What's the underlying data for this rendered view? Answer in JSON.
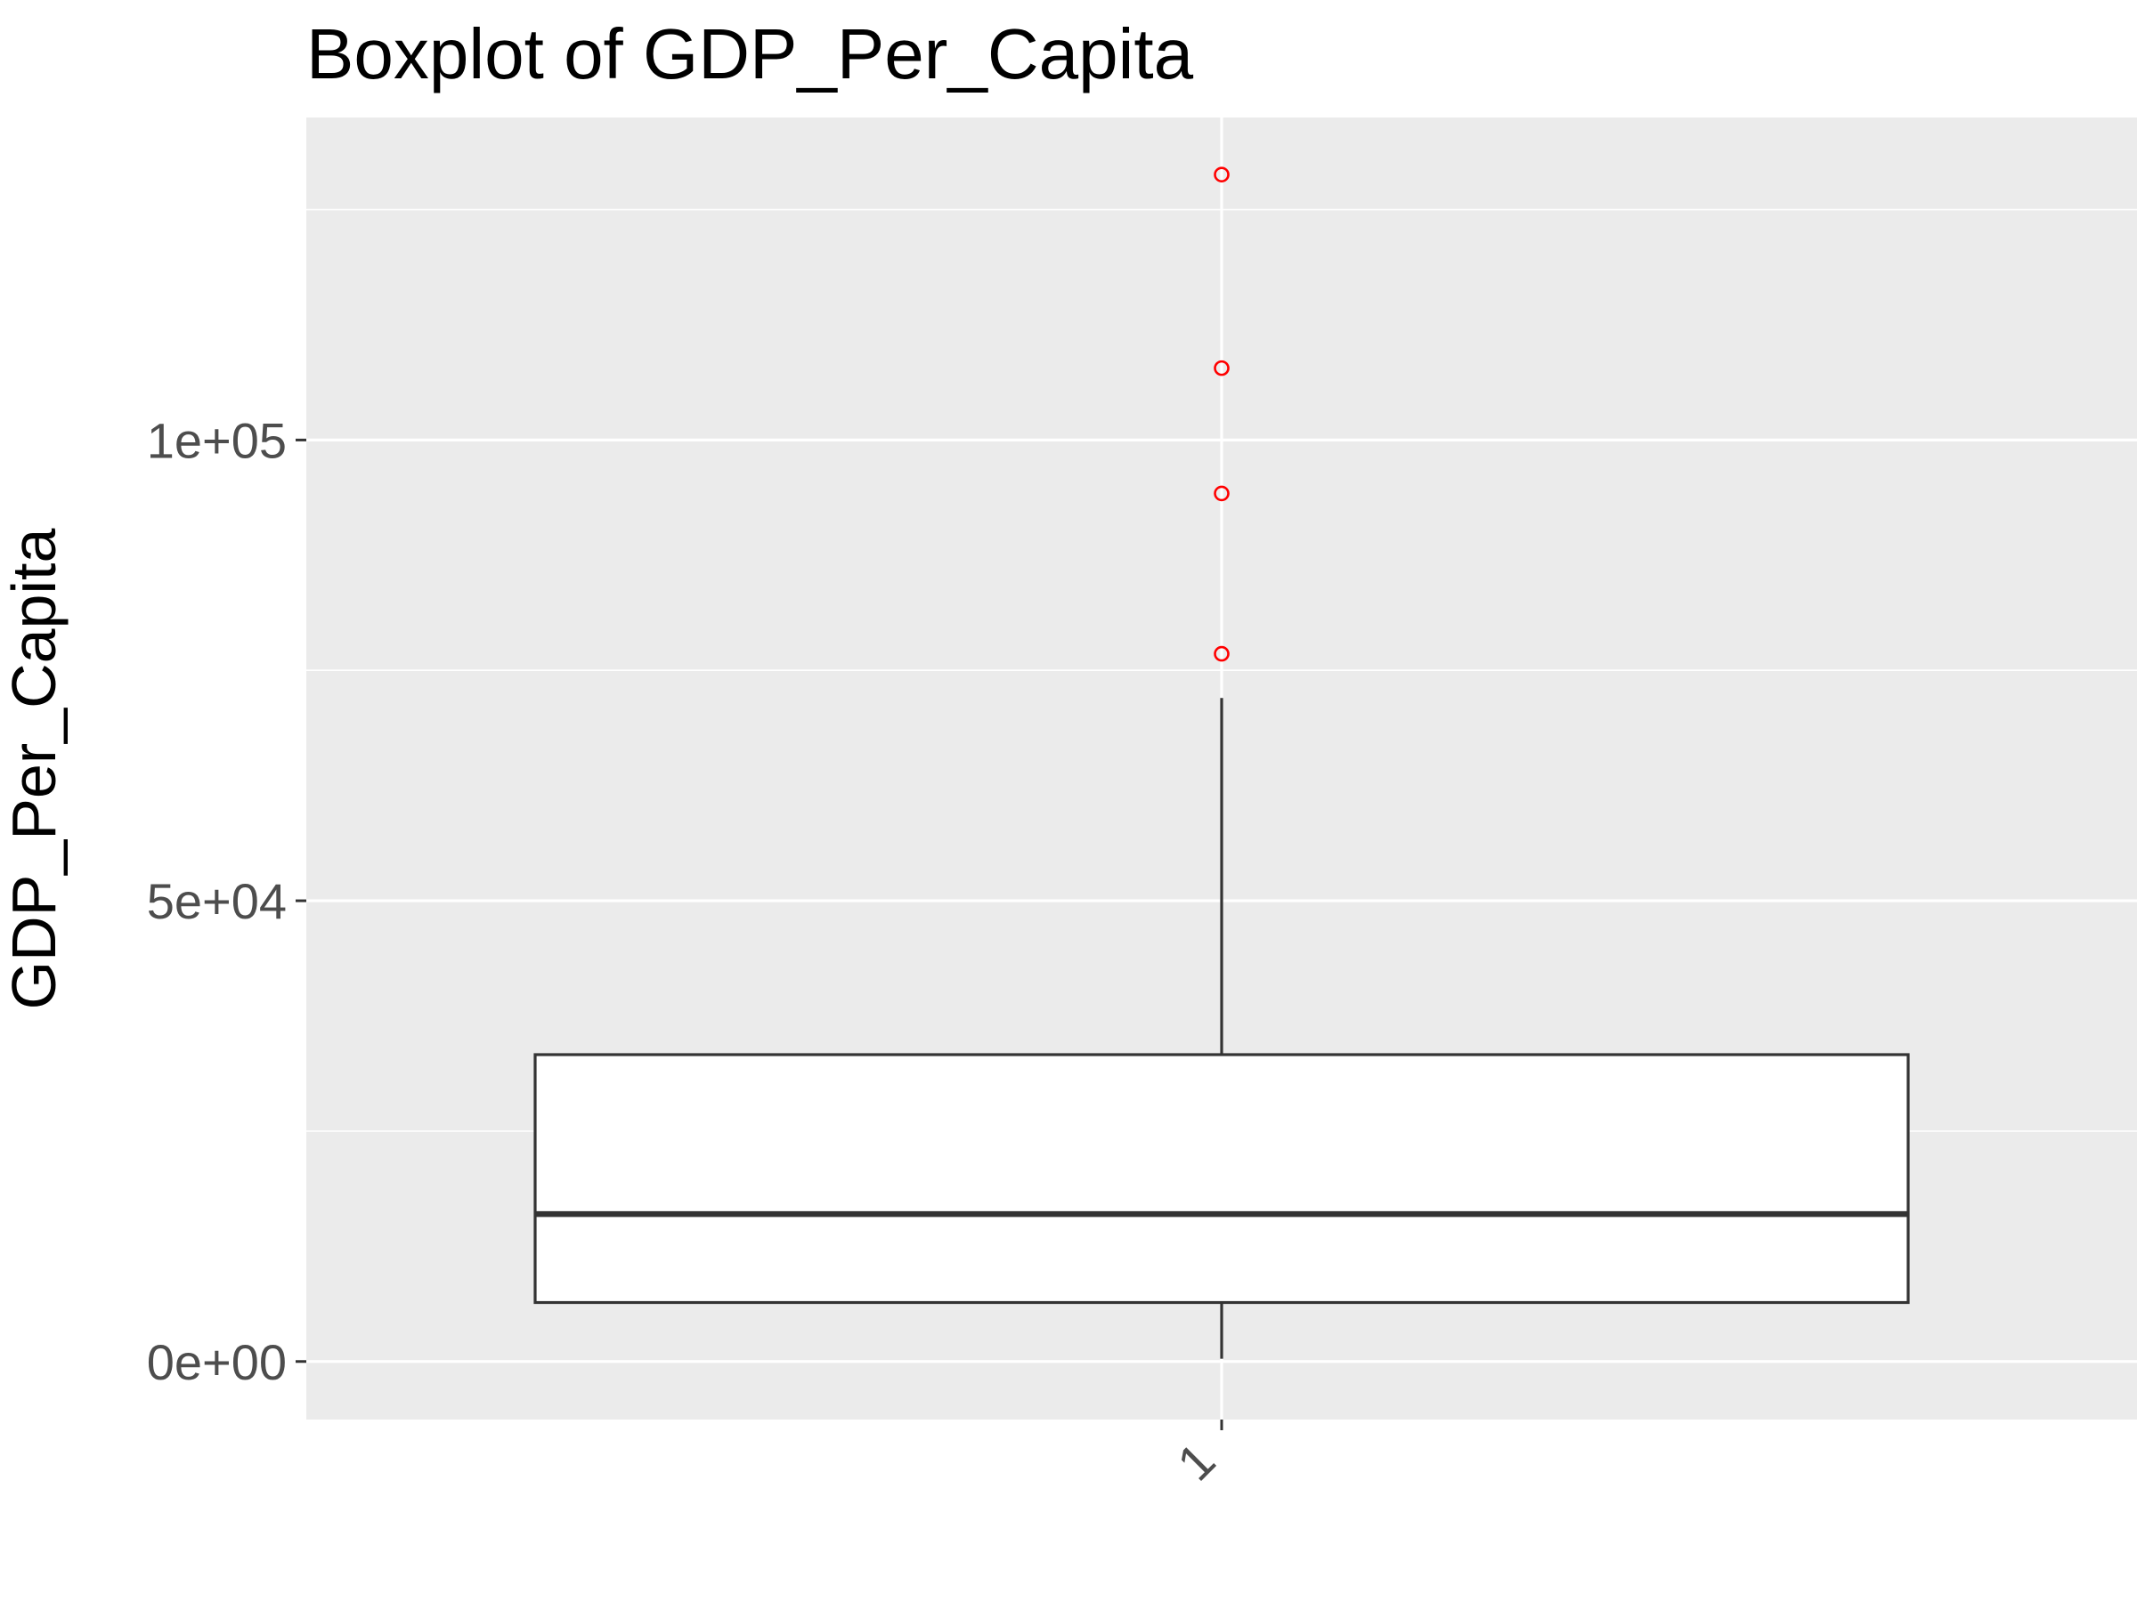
{
  "chart_data": {
    "type": "boxplot",
    "title": "Boxplot of GDP_Per_Capita",
    "xlabel": "",
    "ylabel": "GDP_Per_Capita",
    "categories": [
      "1"
    ],
    "yticks": [
      {
        "value": 0,
        "label": "0e+00"
      },
      {
        "value": 50000,
        "label": "5e+04"
      },
      {
        "value": 100000,
        "label": "1e+05"
      }
    ],
    "ylim": [
      -6300,
      135000
    ],
    "boxes": [
      {
        "category": "1",
        "whisker_low": 300,
        "q1": 6400,
        "median": 16000,
        "q3": 33300,
        "whisker_high": 72000,
        "outliers": [
          76800,
          94200,
          107800,
          128800
        ]
      }
    ],
    "grid": true,
    "legend": "none",
    "colors": {
      "panel": "#ebebeb",
      "grid": "#ffffff",
      "box_line": "#333333",
      "box_fill": "#ffffff",
      "outlier": "#ff0000",
      "tick_text": "#4d4d4d"
    }
  }
}
